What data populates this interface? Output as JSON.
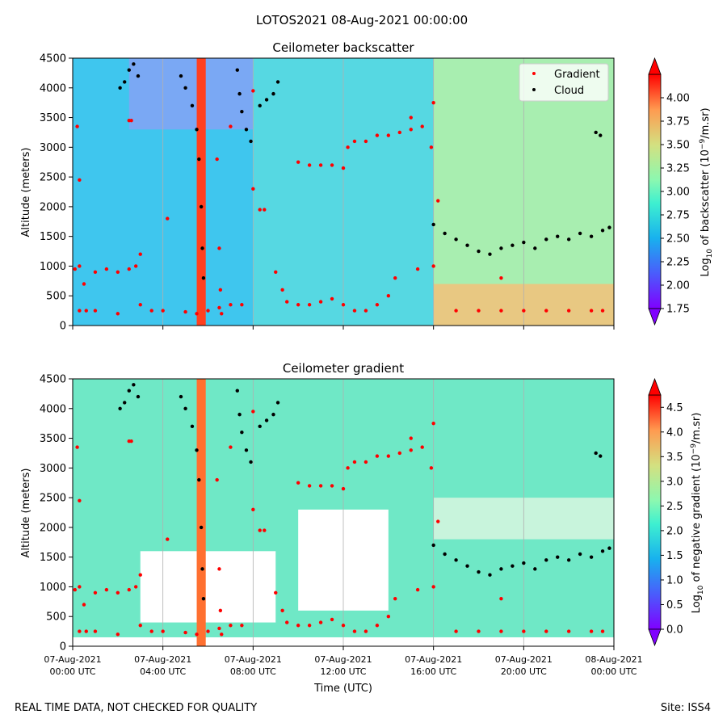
{
  "figure": {
    "title": "LOTOS2021 08-Aug-2021 00:00:00",
    "footer_left": "REAL TIME DATA, NOT CHECKED FOR QUALITY",
    "footer_right": "Site: ISS4"
  },
  "chart_data": [
    {
      "type": "heatmap",
      "title": "Ceilometer backscatter",
      "xlabel": "",
      "ylabel": "Altitude (meters)",
      "ylim": [
        0,
        4500
      ],
      "yticks": [
        "0",
        "500",
        "1000",
        "1500",
        "2000",
        "2500",
        "3000",
        "3500",
        "4000",
        "4500"
      ],
      "xlim_hours": [
        0,
        24
      ],
      "xticks_hours": [
        0,
        4,
        8,
        12,
        16,
        20,
        24
      ],
      "grid": "vertical",
      "colormap": "rainbow",
      "colorbar": {
        "label_prefix": "Log",
        "label_sub": "10",
        "label_mid": " of backscatter (10",
        "label_sup": "−9",
        "label_end": "/m.sr)",
        "range": [
          1.75,
          4.25
        ],
        "ticks": [
          "1.75",
          "2.00",
          "2.25",
          "2.50",
          "2.75",
          "3.00",
          "3.25",
          "3.50",
          "3.75",
          "4.00"
        ],
        "extend": "both"
      },
      "legend": {
        "position": "top-right",
        "entries": [
          {
            "label": "Gradient",
            "color": "#ff0000"
          },
          {
            "label": "Cloud",
            "color": "#000000"
          }
        ]
      },
      "series": [
        {
          "name": "Gradient",
          "color": "#ff0000",
          "points": [
            [
              0.1,
              950
            ],
            [
              0.3,
              1000
            ],
            [
              0.5,
              700
            ],
            [
              1.0,
              900
            ],
            [
              1.5,
              950
            ],
            [
              2.0,
              900
            ],
            [
              2.5,
              950
            ],
            [
              2.8,
              1000
            ],
            [
              3.0,
              1200
            ],
            [
              0.3,
              250
            ],
            [
              0.6,
              250
            ],
            [
              1.0,
              250
            ],
            [
              2.0,
              200
            ],
            [
              3.0,
              350
            ],
            [
              3.5,
              250
            ],
            [
              4.0,
              250
            ],
            [
              5.0,
              230
            ],
            [
              5.5,
              200
            ],
            [
              6.0,
              250
            ],
            [
              6.5,
              300
            ],
            [
              7.0,
              350
            ],
            [
              7.5,
              350
            ],
            [
              8.0,
              3950
            ],
            [
              8.3,
              1950
            ],
            [
              8.5,
              1950
            ],
            [
              9.0,
              900
            ],
            [
              9.3,
              600
            ],
            [
              9.5,
              400
            ],
            [
              10.0,
              350
            ],
            [
              10.5,
              350
            ],
            [
              11.0,
              400
            ],
            [
              11.5,
              450
            ],
            [
              12.0,
              350
            ],
            [
              12.5,
              250
            ],
            [
              13.0,
              250
            ],
            [
              13.5,
              350
            ],
            [
              14.0,
              500
            ],
            [
              14.3,
              800
            ],
            [
              10.0,
              2750
            ],
            [
              10.5,
              2700
            ],
            [
              11.0,
              2700
            ],
            [
              11.5,
              2700
            ],
            [
              12.0,
              2650
            ],
            [
              12.2,
              3000
            ],
            [
              12.5,
              3100
            ],
            [
              13.0,
              3100
            ],
            [
              13.5,
              3200
            ],
            [
              14.0,
              3200
            ],
            [
              14.5,
              3250
            ],
            [
              15.0,
              3300
            ],
            [
              15.5,
              3350
            ],
            [
              15.9,
              3000
            ],
            [
              15.0,
              3500
            ],
            [
              16.0,
              3750
            ],
            [
              15.3,
              950
            ],
            [
              16.0,
              1000
            ],
            [
              16.2,
              2100
            ],
            [
              19.0,
              800
            ],
            [
              17.0,
              250
            ],
            [
              18.0,
              250
            ],
            [
              19.0,
              250
            ],
            [
              20.0,
              250
            ],
            [
              21.0,
              250
            ],
            [
              22.0,
              250
            ],
            [
              23.0,
              250
            ],
            [
              23.5,
              250
            ],
            [
              0.2,
              3350
            ],
            [
              0.3,
              2450
            ],
            [
              2.5,
              3450
            ],
            [
              2.6,
              3450
            ],
            [
              4.2,
              1800
            ],
            [
              6.4,
              2800
            ],
            [
              6.5,
              1300
            ],
            [
              6.55,
              600
            ],
            [
              6.6,
              200
            ],
            [
              7.0,
              3350
            ],
            [
              8.0,
              2300
            ]
          ]
        },
        {
          "name": "Cloud",
          "color": "#000000",
          "points": [
            [
              2.1,
              4000
            ],
            [
              2.3,
              4100
            ],
            [
              2.5,
              4300
            ],
            [
              2.7,
              4400
            ],
            [
              2.9,
              4200
            ],
            [
              4.8,
              4200
            ],
            [
              5.0,
              4000
            ],
            [
              5.3,
              3700
            ],
            [
              5.5,
              3300
            ],
            [
              5.6,
              2800
            ],
            [
              5.7,
              2000
            ],
            [
              5.75,
              1300
            ],
            [
              5.8,
              800
            ],
            [
              7.3,
              4300
            ],
            [
              7.4,
              3900
            ],
            [
              7.5,
              3600
            ],
            [
              7.7,
              3300
            ],
            [
              7.9,
              3100
            ],
            [
              8.3,
              3700
            ],
            [
              8.6,
              3800
            ],
            [
              8.9,
              3900
            ],
            [
              9.1,
              4100
            ],
            [
              16.0,
              1700
            ],
            [
              16.5,
              1550
            ],
            [
              17.0,
              1450
            ],
            [
              17.5,
              1350
            ],
            [
              18.0,
              1250
            ],
            [
              18.5,
              1200
            ],
            [
              19.0,
              1300
            ],
            [
              19.5,
              1350
            ],
            [
              20.0,
              1400
            ],
            [
              20.5,
              1300
            ],
            [
              21.0,
              1450
            ],
            [
              21.5,
              1500
            ],
            [
              22.0,
              1450
            ],
            [
              22.5,
              1550
            ],
            [
              23.0,
              1500
            ],
            [
              23.5,
              1600
            ],
            [
              23.8,
              1650
            ],
            [
              23.2,
              3250
            ],
            [
              23.4,
              3200
            ]
          ]
        }
      ]
    },
    {
      "type": "heatmap",
      "title": "Ceilometer gradient",
      "xlabel": "Time (UTC)",
      "ylabel": "Altitude (meters)",
      "ylim": [
        0,
        4500
      ],
      "yticks": [
        "0",
        "500",
        "1000",
        "1500",
        "2000",
        "2500",
        "3000",
        "3500",
        "4000",
        "4500"
      ],
      "xlim_hours": [
        0,
        24
      ],
      "xticks_hours": [
        0,
        4,
        8,
        12,
        16,
        20,
        24
      ],
      "xtick_labels": [
        [
          "07-Aug-2021",
          "00:00 UTC"
        ],
        [
          "07-Aug-2021",
          "04:00 UTC"
        ],
        [
          "07-Aug-2021",
          "08:00 UTC"
        ],
        [
          "07-Aug-2021",
          "12:00 UTC"
        ],
        [
          "07-Aug-2021",
          "16:00 UTC"
        ],
        [
          "07-Aug-2021",
          "20:00 UTC"
        ],
        [
          "08-Aug-2021",
          "00:00 UTC"
        ]
      ],
      "grid": "vertical",
      "colormap": "rainbow",
      "colorbar": {
        "label_prefix": "Log",
        "label_sub": "10",
        "label_mid": " of negative gradient (10",
        "label_sup": "−9",
        "label_end": "/m.sr)",
        "range": [
          0.0,
          4.75
        ],
        "ticks": [
          "0.0",
          "0.5",
          "1.0",
          "1.5",
          "2.0",
          "2.5",
          "3.0",
          "3.5",
          "4.0",
          "4.5"
        ],
        "extend": "both"
      },
      "series_same_as_top": true
    }
  ]
}
